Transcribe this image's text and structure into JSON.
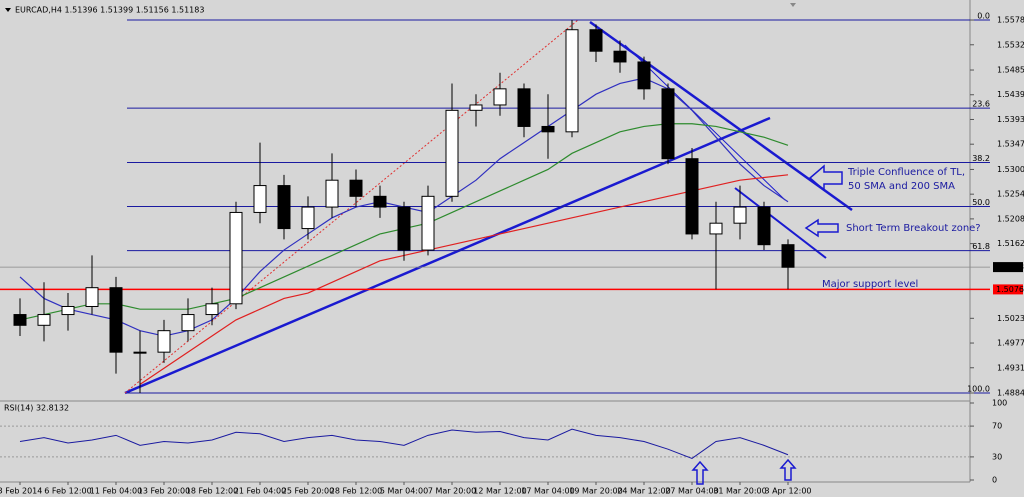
{
  "chart_data": {
    "type": "candlestick",
    "header": "EURCAD,H4  1.51396 1.51399 1.51156 1.51183",
    "categories": [
      "3 Feb 2014",
      null,
      "6 Feb 12:00",
      null,
      "11 Feb 04:00",
      null,
      "13 Feb 20:00",
      null,
      "18 Feb 12:00",
      null,
      "21 Feb 04:00",
      null,
      "25 Feb 20:00",
      null,
      "28 Feb 12:00",
      null,
      "5 Mar 04:00",
      null,
      "7 Mar 20:00",
      null,
      "12 Mar 12:00",
      null,
      "17 Mar 04:00",
      null,
      "19 Mar 20:00",
      null,
      "24 Mar 12:00",
      null,
      "27 Mar 04:00",
      null,
      "31 Mar 20:00",
      null,
      "3 Apr 12:00"
    ],
    "open": [
      1.503,
      1.501,
      1.503,
      1.5045,
      1.508,
      1.496,
      1.496,
      1.5,
      1.503,
      1.505,
      1.522,
      1.527,
      1.519,
      1.523,
      1.528,
      1.525,
      1.523,
      1.515,
      1.525,
      1.541,
      1.542,
      1.545,
      1.538,
      1.537,
      1.556,
      1.552,
      1.55,
      1.545,
      1.532,
      1.518,
      1.52,
      1.523,
      1.516
    ],
    "high": [
      1.506,
      1.509,
      1.507,
      1.514,
      1.51,
      1.5,
      1.502,
      1.506,
      1.508,
      1.524,
      1.535,
      1.529,
      1.525,
      1.533,
      1.53,
      1.527,
      1.524,
      1.527,
      1.546,
      1.544,
      1.548,
      1.546,
      1.544,
      1.5578,
      1.557,
      1.554,
      1.551,
      1.546,
      1.534,
      1.524,
      1.527,
      1.524,
      1.517
    ],
    "low": [
      1.499,
      1.498,
      1.5,
      1.503,
      1.492,
      1.4884,
      1.494,
      1.498,
      1.501,
      1.504,
      1.52,
      1.517,
      1.517,
      1.521,
      1.523,
      1.521,
      1.513,
      1.514,
      1.524,
      1.538,
      1.54,
      1.536,
      1.532,
      1.536,
      1.55,
      1.548,
      1.543,
      1.531,
      1.517,
      1.5077,
      1.517,
      1.515,
      1.5077
    ],
    "close": [
      1.501,
      1.503,
      1.5045,
      1.508,
      1.496,
      1.496,
      1.5,
      1.503,
      1.505,
      1.522,
      1.527,
      1.519,
      1.523,
      1.528,
      1.525,
      1.523,
      1.515,
      1.525,
      1.541,
      1.542,
      1.545,
      1.538,
      1.537,
      1.556,
      1.552,
      1.55,
      1.545,
      1.532,
      1.518,
      1.52,
      1.523,
      1.516,
      1.5118
    ],
    "up_color": "#ffffff",
    "down_color": "#000000",
    "ma": [
      {
        "color": "#3030c0",
        "values": [
          1.51,
          1.506,
          1.504,
          1.503,
          1.502,
          1.5,
          1.499,
          1.5,
          1.502,
          1.506,
          1.511,
          1.515,
          1.518,
          1.521,
          1.523,
          1.524,
          1.523,
          1.522,
          1.525,
          1.528,
          1.532,
          1.535,
          1.538,
          1.541,
          1.544,
          1.546,
          1.547,
          1.545,
          1.541,
          1.536,
          1.531,
          1.527,
          1.524
        ]
      },
      {
        "color": "#2e8b2e",
        "values": [
          1.502,
          1.503,
          1.504,
          1.505,
          1.505,
          1.504,
          1.504,
          1.504,
          1.505,
          1.506,
          1.508,
          1.51,
          1.512,
          1.514,
          1.516,
          1.518,
          1.519,
          1.52,
          1.522,
          1.524,
          1.526,
          1.528,
          1.53,
          1.533,
          1.535,
          1.537,
          1.538,
          1.5385,
          1.5385,
          1.538,
          1.537,
          1.536,
          1.5345
        ]
      },
      {
        "color": "#e02020",
        "values": [
          null,
          null,
          null,
          null,
          null,
          1.49,
          1.493,
          1.496,
          1.499,
          1.502,
          1.504,
          1.506,
          1.507,
          1.509,
          1.511,
          1.513,
          1.514,
          1.515,
          1.516,
          1.517,
          1.518,
          1.519,
          1.52,
          1.521,
          1.522,
          1.523,
          1.524,
          1.525,
          1.526,
          1.527,
          1.528,
          1.5285,
          1.529
        ]
      }
    ],
    "ylim": [
      1.4871,
      1.5606
    ],
    "yticks": [
      {
        "value": 1.5578,
        "label": "1.55780"
      },
      {
        "value": 1.5532,
        "label": "1.55320"
      },
      {
        "value": 1.5485,
        "label": "1.54850"
      },
      {
        "value": 1.5439,
        "label": "1.54390"
      },
      {
        "value": 1.5393,
        "label": "1.53930"
      },
      {
        "value": 1.5347,
        "label": "1.53470"
      },
      {
        "value": 1.53,
        "label": "1.53000"
      },
      {
        "value": 1.5254,
        "label": "1.52540"
      },
      {
        "value": 1.5208,
        "label": "1.52080"
      },
      {
        "value": 1.5162,
        "label": "1.51620"
      },
      {
        "value": 1.5023,
        "label": "1.50230"
      },
      {
        "value": 1.4977,
        "label": "1.49770"
      },
      {
        "value": 1.4931,
        "label": "1.49310"
      },
      {
        "value": 1.4884,
        "label": "1.48840"
      }
    ],
    "current_price": {
      "value": 1.51183,
      "label": "1.51183"
    },
    "support": {
      "value": 1.50768,
      "label": "1.50768",
      "color": "#ff0000"
    },
    "fib_color": "#1a1aa0",
    "fib": [
      {
        "label": "0.0",
        "price": 1.5578
      },
      {
        "label": "23.6",
        "price": 1.5414
      },
      {
        "label": "38.2",
        "price": 1.5313
      },
      {
        "label": "50.0",
        "price": 1.5231
      },
      {
        "label": "61.8",
        "price": 1.5149
      },
      {
        "label": "100.0",
        "price": 1.4884
      }
    ],
    "annotations": [
      "Triple Confluence of TL,",
      "50 SMA and 200 SMA",
      "Short Term Breakout zone?",
      "Major support level"
    ],
    "rsi": {
      "label": "RSI(14) 32.8132",
      "color": "#1a1aa0",
      "ylim": [
        0,
        100
      ],
      "yticks": [
        100,
        70,
        30,
        0
      ],
      "values": [
        50,
        55,
        48,
        52,
        58,
        45,
        50,
        48,
        52,
        62,
        60,
        50,
        55,
        58,
        52,
        50,
        45,
        58,
        65,
        62,
        63,
        55,
        52,
        66,
        58,
        55,
        50,
        40,
        28,
        50,
        55,
        45,
        32.8132
      ]
    }
  }
}
